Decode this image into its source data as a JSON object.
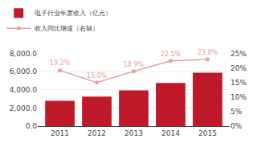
{
  "chart_data": {
    "type": "bar",
    "x": [
      2011,
      2012,
      2013,
      2014,
      2015
    ],
    "xlim": [
      2010.4,
      2015.6
    ],
    "xticks": [
      2011,
      2012,
      2013,
      2014,
      2015
    ],
    "ylim": [
      0,
      8000
    ],
    "yticks": [
      {
        "value": 0,
        "label": "0.0"
      },
      {
        "value": 2000,
        "label": "2,000.0"
      },
      {
        "value": 4000,
        "label": "4,000.0"
      },
      {
        "value": 6000,
        "label": "6,000.0"
      },
      {
        "value": 8000,
        "label": "8,000.0"
      }
    ],
    "y2lim": [
      0,
      0.25
    ],
    "y2ticks": [
      {
        "value": 0,
        "label": "0%"
      },
      {
        "value": 0.05,
        "label": "5%"
      },
      {
        "value": 0.1,
        "label": "10%"
      },
      {
        "value": 0.15,
        "label": "15%"
      },
      {
        "value": 0.2,
        "label": "20%"
      },
      {
        "value": 0.25,
        "label": "25%"
      }
    ],
    "grid": true,
    "legend": "upper left",
    "series": [
      {
        "name": "电子行业年度收入（亿元）",
        "type": "bar",
        "color": "#C0192A",
        "values": [
          2800,
          3250,
          3950,
          4750,
          5900
        ]
      },
      {
        "name": "收入同比增速（右轴）",
        "type": "line",
        "axis": "y2",
        "color": "#E8A0A0",
        "marker": "circle",
        "data_labels": true,
        "values": [
          0.192,
          0.15,
          0.189,
          0.225,
          0.23
        ],
        "value_labels": [
          "19.2%",
          "15.0%",
          "18.9%",
          "22.5%",
          "23.0%"
        ]
      }
    ]
  }
}
